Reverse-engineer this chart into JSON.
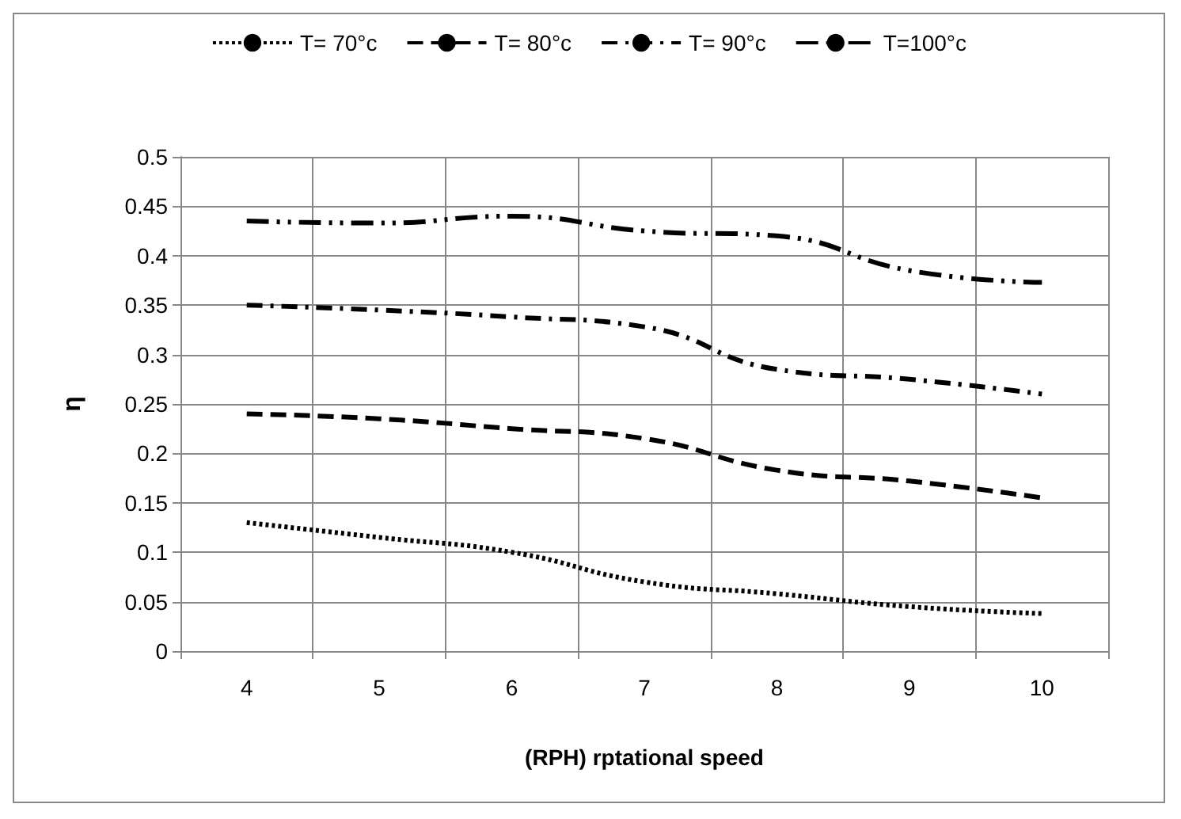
{
  "chart_data": {
    "type": "line",
    "xlabel": "(RPH) rptational speed",
    "ylabel": "η",
    "categories": [
      "4",
      "5",
      "6",
      "7",
      "8",
      "9",
      "10"
    ],
    "series": [
      {
        "name": "T= 70°c",
        "color": "#000000",
        "line_style": "dotted",
        "values": [
          0.13,
          0.115,
          0.1,
          0.07,
          0.058,
          0.045,
          0.038
        ]
      },
      {
        "name": "T= 80°c",
        "color": "#000000",
        "line_style": "dashed",
        "values": [
          0.24,
          0.235,
          0.225,
          0.215,
          0.183,
          0.172,
          0.155
        ]
      },
      {
        "name": "T= 90°c",
        "color": "#000000",
        "line_style": "dashdot",
        "values": [
          0.35,
          0.345,
          0.338,
          0.328,
          0.285,
          0.275,
          0.26
        ]
      },
      {
        "name": "T=100°c",
        "color": "#000000",
        "line_style": "dashdotdot",
        "values": [
          0.435,
          0.433,
          0.44,
          0.425,
          0.42,
          0.385,
          0.373
        ]
      }
    ],
    "ylim": [
      0,
      0.5
    ],
    "yticks": [
      0,
      0.05,
      0.1,
      0.15,
      0.2,
      0.25,
      0.3,
      0.35,
      0.4,
      0.45,
      0.5
    ],
    "grid": true,
    "legend": "top",
    "marker": "none"
  }
}
